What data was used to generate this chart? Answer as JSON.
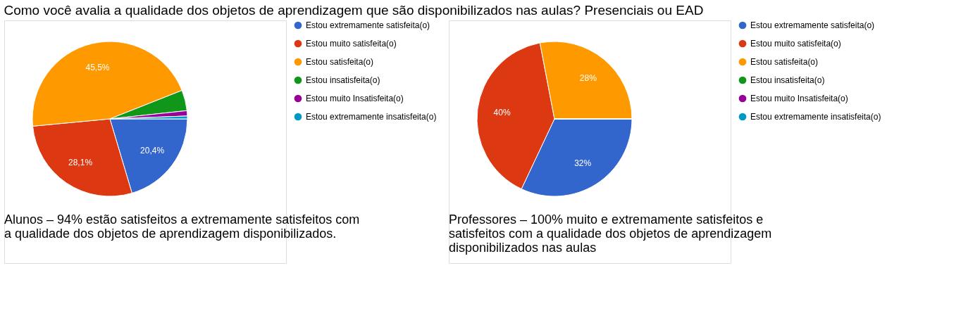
{
  "chart_data": [
    {
      "type": "pie",
      "title": "Como você avalia a qualidade dos objetos de aprendizagem que são disponibilizados nas aulas? Presenciais ou EAD",
      "categories": [
        "Estou extremamente satisfeita(o)",
        "Estou muito satisfeita(o)",
        "Estou satisfeita(o)",
        "Estou insatisfeita(o)",
        "Estou muito Insatisfeita(o)",
        "Estou extremamente insatisfeita(o)"
      ],
      "values": [
        20.4,
        28.1,
        45.5,
        4.3,
        1.1,
        0.6
      ],
      "value_labels": [
        "20,4%",
        "28,1%",
        "45,5%",
        null,
        null,
        null
      ],
      "colors": [
        "#3366cc",
        "#dc3912",
        "#ff9900",
        "#109618",
        "#990099",
        "#0099c6"
      ],
      "legend": "right",
      "annotations": [
        "Alunos – 94% estão satisfeitos a extremamente satisfeitos com a qualidade dos objetos de aprendizagem disponibilizados."
      ]
    },
    {
      "type": "pie",
      "categories": [
        "Estou extremamente satisfeita(o)",
        "Estou muito satisfeita(o)",
        "Estou satisfeita(o)",
        "Estou insatisfeita(o)",
        "Estou muito Insatisfeita(o)",
        "Estou extremamente insatisfeita(o)"
      ],
      "values": [
        32,
        40,
        28,
        0,
        0,
        0
      ],
      "value_labels": [
        "32%",
        "40%",
        "28%",
        null,
        null,
        null
      ],
      "colors": [
        "#3366cc",
        "#dc3912",
        "#ff9900",
        "#109618",
        "#990099",
        "#0099c6"
      ],
      "legend": "right",
      "annotations": [
        "Professores – 100% muito e extremamente satisfeitos e satisfeitos com a qualidade dos objetos de aprendizagem disponibilizados nas aulas"
      ]
    }
  ]
}
